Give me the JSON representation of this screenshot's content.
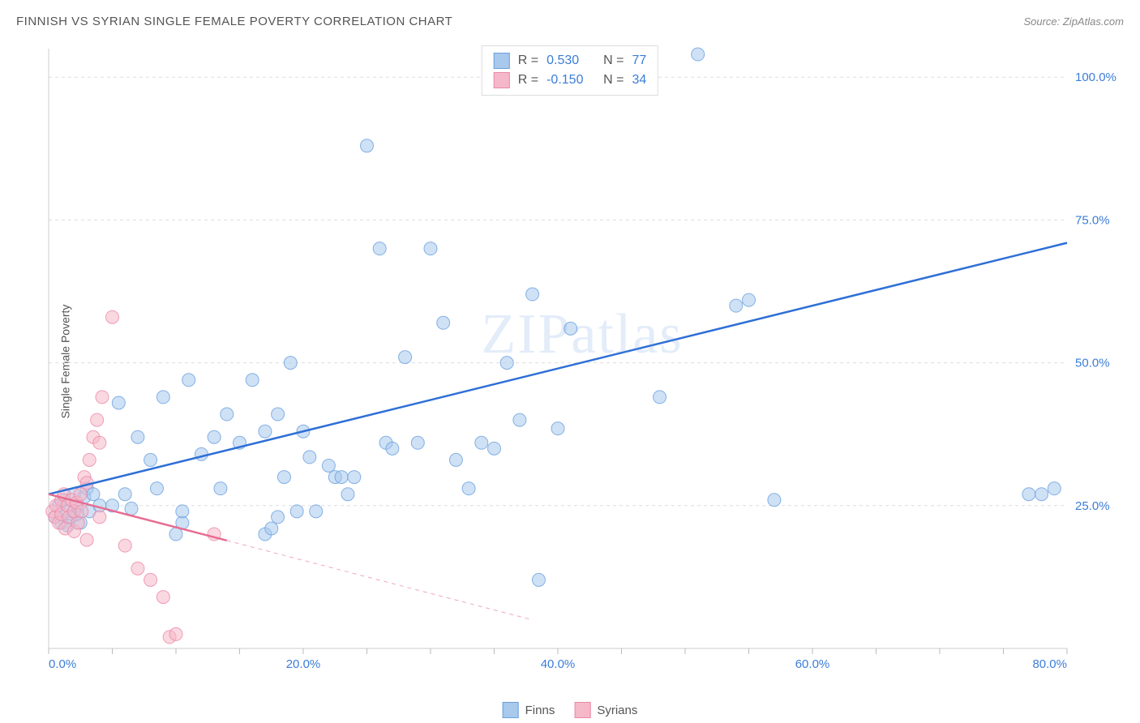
{
  "title": "FINNISH VS SYRIAN SINGLE FEMALE POVERTY CORRELATION CHART",
  "source_label": "Source: ",
  "source_value": "ZipAtlas.com",
  "watermark": "ZIPatlas",
  "ylabel": "Single Female Poverty",
  "chart": {
    "type": "scatter",
    "xlim": [
      0,
      80
    ],
    "ylim": [
      0,
      105
    ],
    "xtick_step": 20,
    "ytick_step": 25,
    "xtick_labels": [
      "0.0%",
      "20.0%",
      "40.0%",
      "60.0%",
      "80.0%"
    ],
    "ytick_labels": [
      "25.0%",
      "50.0%",
      "75.0%",
      "100.0%"
    ],
    "grid_color": "#dddddd",
    "axis_color": "#cccccc",
    "tick_color": "#bbbbbb",
    "label_color": "#3b7dd8",
    "label_fontsize": 15,
    "background_color": "#ffffff",
    "marker_radius": 8,
    "marker_opacity": 0.55,
    "line_width": 2.5,
    "series": [
      {
        "name": "Finns",
        "color_fill": "#a8c8ec",
        "color_stroke": "#6aa0de",
        "line_color": "#2e6fd6",
        "R": "0.530",
        "N": "77",
        "regression": {
          "x1": 0,
          "y1": 27,
          "x2": 80,
          "y2": 71,
          "solid_until_x": 80
        },
        "points": [
          [
            0.5,
            23
          ],
          [
            0.8,
            25
          ],
          [
            1,
            22
          ],
          [
            1.2,
            26
          ],
          [
            1.5,
            24
          ],
          [
            1.8,
            23
          ],
          [
            2,
            27
          ],
          [
            2,
            24
          ],
          [
            2.2,
            25
          ],
          [
            2.5,
            22
          ],
          [
            2.8,
            26.5
          ],
          [
            3,
            28
          ],
          [
            3.2,
            24
          ],
          [
            3.5,
            27
          ],
          [
            4,
            25
          ],
          [
            5,
            25
          ],
          [
            5.5,
            43
          ],
          [
            6,
            27
          ],
          [
            6.5,
            24.5
          ],
          [
            7,
            37
          ],
          [
            8,
            33
          ],
          [
            8.5,
            28
          ],
          [
            9,
            44
          ],
          [
            10,
            20
          ],
          [
            10.5,
            22
          ],
          [
            10.5,
            24
          ],
          [
            11,
            47
          ],
          [
            12,
            34
          ],
          [
            13,
            37
          ],
          [
            13.5,
            28
          ],
          [
            14,
            41
          ],
          [
            15,
            36
          ],
          [
            16,
            47
          ],
          [
            17,
            38
          ],
          [
            17,
            20
          ],
          [
            17.5,
            21
          ],
          [
            18,
            23
          ],
          [
            18,
            41
          ],
          [
            18.5,
            30
          ],
          [
            19,
            50
          ],
          [
            19.5,
            24
          ],
          [
            20,
            38
          ],
          [
            20.5,
            33.5
          ],
          [
            21,
            24
          ],
          [
            22,
            32
          ],
          [
            22.5,
            30
          ],
          [
            23,
            30
          ],
          [
            23.5,
            27
          ],
          [
            24,
            30
          ],
          [
            25,
            88
          ],
          [
            26,
            70
          ],
          [
            26.5,
            36
          ],
          [
            27,
            35
          ],
          [
            28,
            51
          ],
          [
            29,
            36
          ],
          [
            30,
            70
          ],
          [
            31,
            57
          ],
          [
            32,
            33
          ],
          [
            33,
            28
          ],
          [
            34,
            36
          ],
          [
            35,
            35
          ],
          [
            36,
            50
          ],
          [
            37,
            40
          ],
          [
            38,
            62
          ],
          [
            38.5,
            12
          ],
          [
            40,
            38.5
          ],
          [
            41,
            56
          ],
          [
            48,
            44
          ],
          [
            51,
            104
          ],
          [
            54,
            60
          ],
          [
            55,
            61
          ],
          [
            57,
            26
          ],
          [
            77,
            27
          ],
          [
            78,
            27
          ],
          [
            79,
            28
          ],
          [
            1.5,
            21.5
          ],
          [
            2.2,
            23.5
          ]
        ]
      },
      {
        "name": "Syrians",
        "color_fill": "#f5b8c9",
        "color_stroke": "#eb88a5",
        "line_color": "#e86b91",
        "R": "-0.150",
        "N": "34",
        "regression": {
          "x1": 0,
          "y1": 27,
          "x2": 38,
          "y2": 5,
          "solid_until_x": 14
        },
        "points": [
          [
            0.3,
            24
          ],
          [
            0.5,
            23
          ],
          [
            0.6,
            25
          ],
          [
            0.8,
            22
          ],
          [
            1,
            26
          ],
          [
            1,
            23.5
          ],
          [
            1.2,
            27
          ],
          [
            1.3,
            21
          ],
          [
            1.5,
            25
          ],
          [
            1.6,
            23
          ],
          [
            1.8,
            26
          ],
          [
            2,
            24
          ],
          [
            2,
            20.5
          ],
          [
            2.2,
            25.5
          ],
          [
            2.3,
            22
          ],
          [
            2.5,
            27
          ],
          [
            2.6,
            24
          ],
          [
            2.8,
            30
          ],
          [
            3,
            29
          ],
          [
            3,
            19
          ],
          [
            3.2,
            33
          ],
          [
            3.5,
            37
          ],
          [
            3.8,
            40
          ],
          [
            4,
            36
          ],
          [
            4,
            23
          ],
          [
            4.2,
            44
          ],
          [
            5,
            58
          ],
          [
            6,
            18
          ],
          [
            7,
            14
          ],
          [
            8,
            12
          ],
          [
            9,
            9
          ],
          [
            9.5,
            2
          ],
          [
            10,
            2.5
          ],
          [
            13,
            20
          ]
        ]
      }
    ]
  },
  "stats_prefix_R": "R = ",
  "stats_prefix_N": "N = "
}
